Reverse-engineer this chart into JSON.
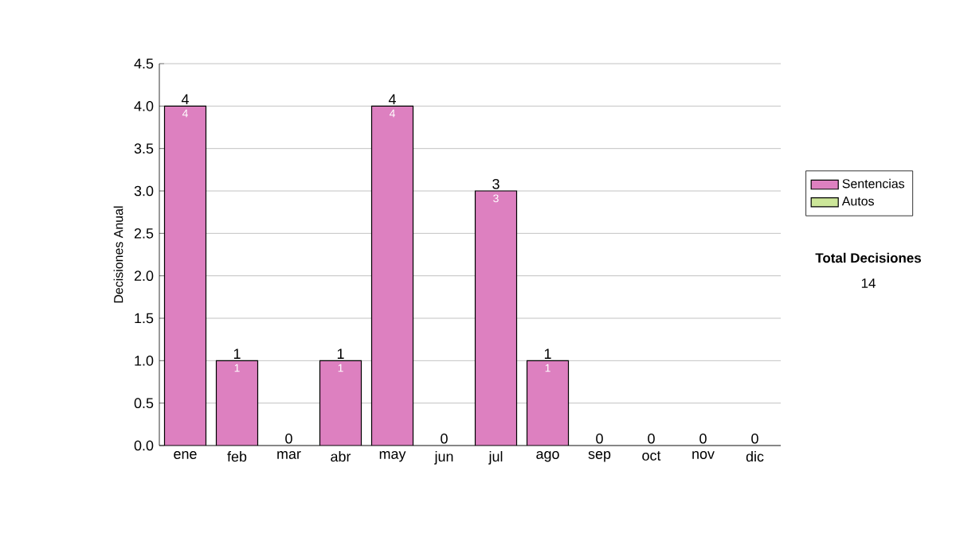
{
  "chart_data": {
    "type": "bar",
    "stacked": true,
    "ylabel": "Decisiones Anual",
    "categories": [
      "ene",
      "feb",
      "mar",
      "abr",
      "may",
      "jun",
      "jul",
      "ago",
      "sep",
      "oct",
      "nov",
      "dic"
    ],
    "series": [
      {
        "name": "Sentencias",
        "color": "#dd80c0",
        "values": [
          4,
          1,
          0,
          1,
          4,
          0,
          3,
          1,
          0,
          0,
          0,
          0
        ],
        "value_labels": [
          "4",
          "1",
          null,
          "1",
          "4",
          null,
          "3",
          "1",
          null,
          null,
          null,
          null
        ]
      },
      {
        "name": "Autos",
        "color": "#cce699",
        "values": [
          0,
          0,
          0,
          0,
          0,
          0,
          0,
          0,
          0,
          0,
          0,
          0
        ]
      }
    ],
    "totals": [
      "4",
      "1",
      "0",
      "1",
      "4",
      "0",
      "3",
      "1",
      "0",
      "0",
      "0",
      "0"
    ],
    "ylim": [
      0,
      4.5
    ],
    "yticks": [
      {
        "value": 0,
        "label": "0.0"
      },
      {
        "value": 0.5,
        "label": "0.5"
      },
      {
        "value": 1,
        "label": "1.0"
      },
      {
        "value": 1.5,
        "label": "1.5"
      },
      {
        "value": 2,
        "label": "2.0"
      },
      {
        "value": 2.5,
        "label": "2.5"
      },
      {
        "value": 3,
        "label": "3.0"
      },
      {
        "value": 3.5,
        "label": "3.5"
      },
      {
        "value": 4,
        "label": "4.0"
      },
      {
        "value": 4.5,
        "label": "4.5"
      }
    ],
    "grid": "y",
    "legend": "right",
    "annotations": [
      "Total Decisiones",
      "14"
    ]
  }
}
